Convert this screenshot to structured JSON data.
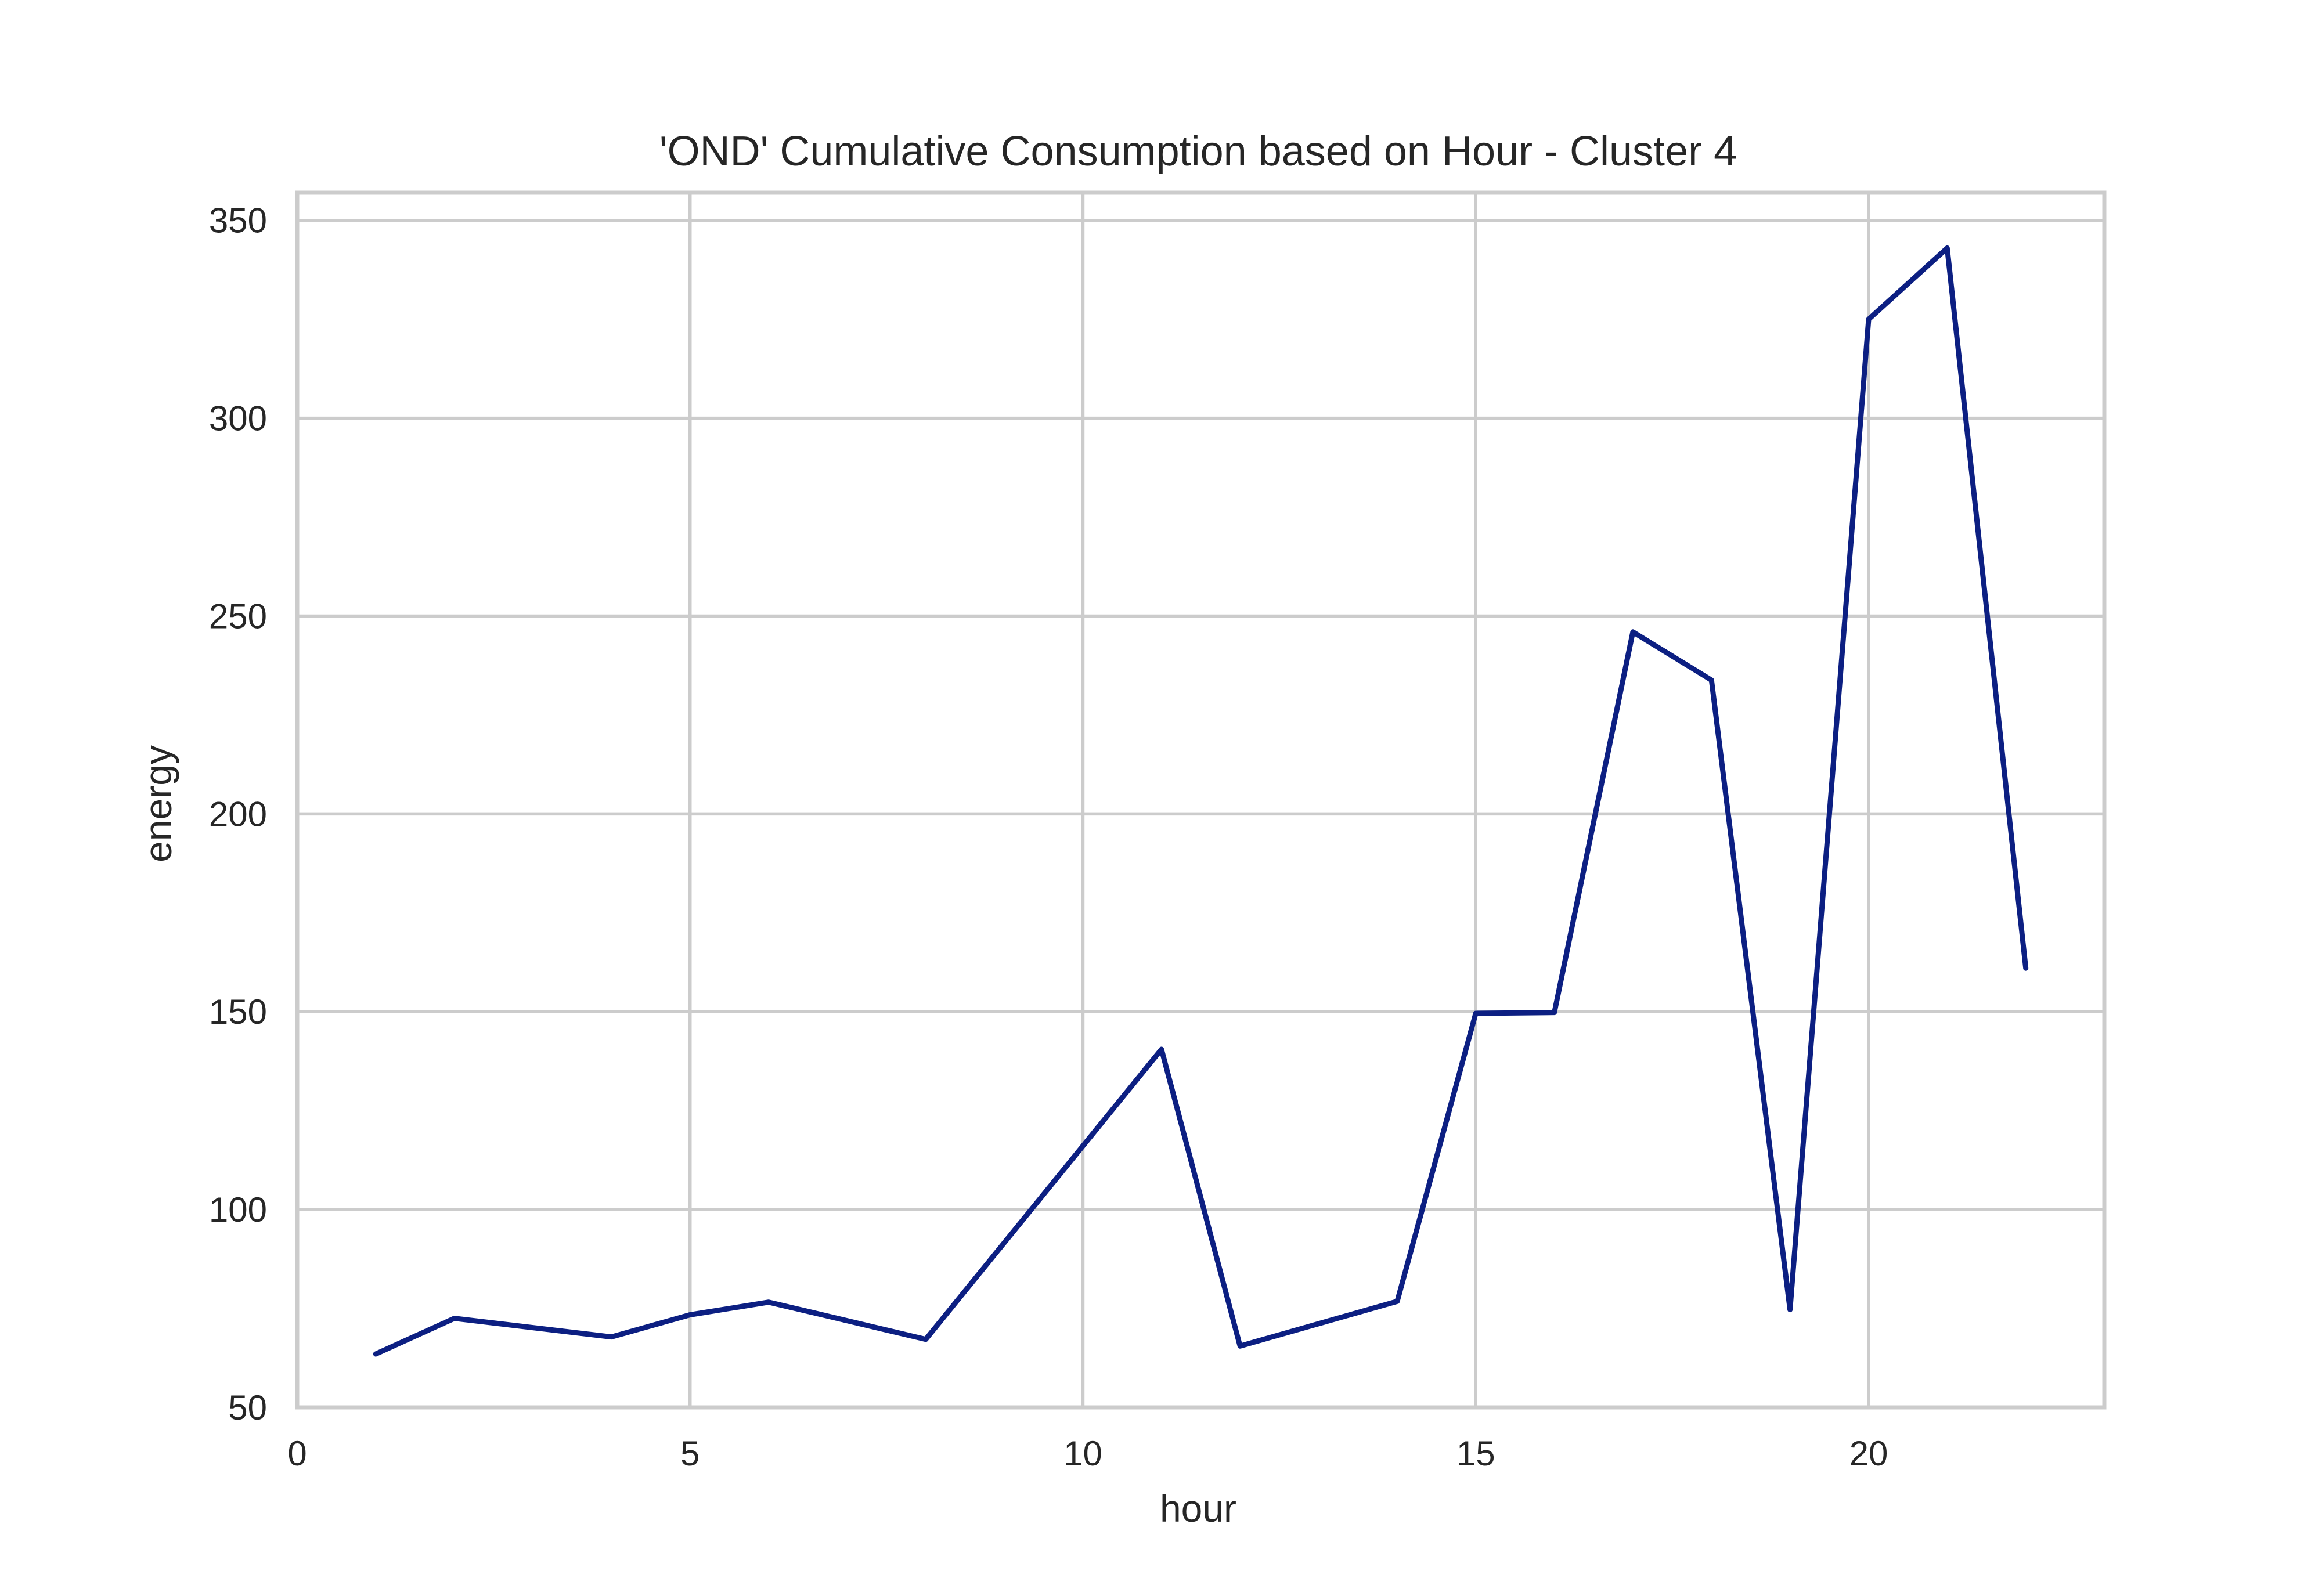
{
  "chart_data": {
    "type": "line",
    "title": "'OND' Cumulative Consumption based on Hour - Cluster 4",
    "xlabel": "hour",
    "ylabel": "energy",
    "xlim": [
      0,
      23
    ],
    "ylim": [
      50,
      357
    ],
    "x_ticks": [
      0,
      5,
      10,
      15,
      20
    ],
    "x_tick_labels": [
      "0",
      "5",
      "10",
      "15",
      "20"
    ],
    "y_ticks": [
      50,
      100,
      150,
      200,
      250,
      300,
      350
    ],
    "y_tick_labels": [
      "50",
      "100",
      "150",
      "200",
      "250",
      "300",
      "350"
    ],
    "grid": true,
    "legend": "none",
    "colors": {
      "line": "#0c1f82",
      "grid": "#cccccc",
      "text": "#262626",
      "background": "#ffffff"
    },
    "series": [
      {
        "x": [
          1,
          2,
          4,
          5,
          6,
          8,
          11,
          12,
          14,
          15,
          16,
          17,
          18,
          19,
          20,
          21,
          22
        ],
        "values": [
          63.5,
          72.5,
          67.8,
          73.4,
          76.6,
          67.2,
          140.5,
          65.5,
          76.8,
          149.6,
          149.8,
          246.0,
          233.8,
          74.7,
          325.0,
          343.0,
          161.0
        ]
      }
    ]
  }
}
